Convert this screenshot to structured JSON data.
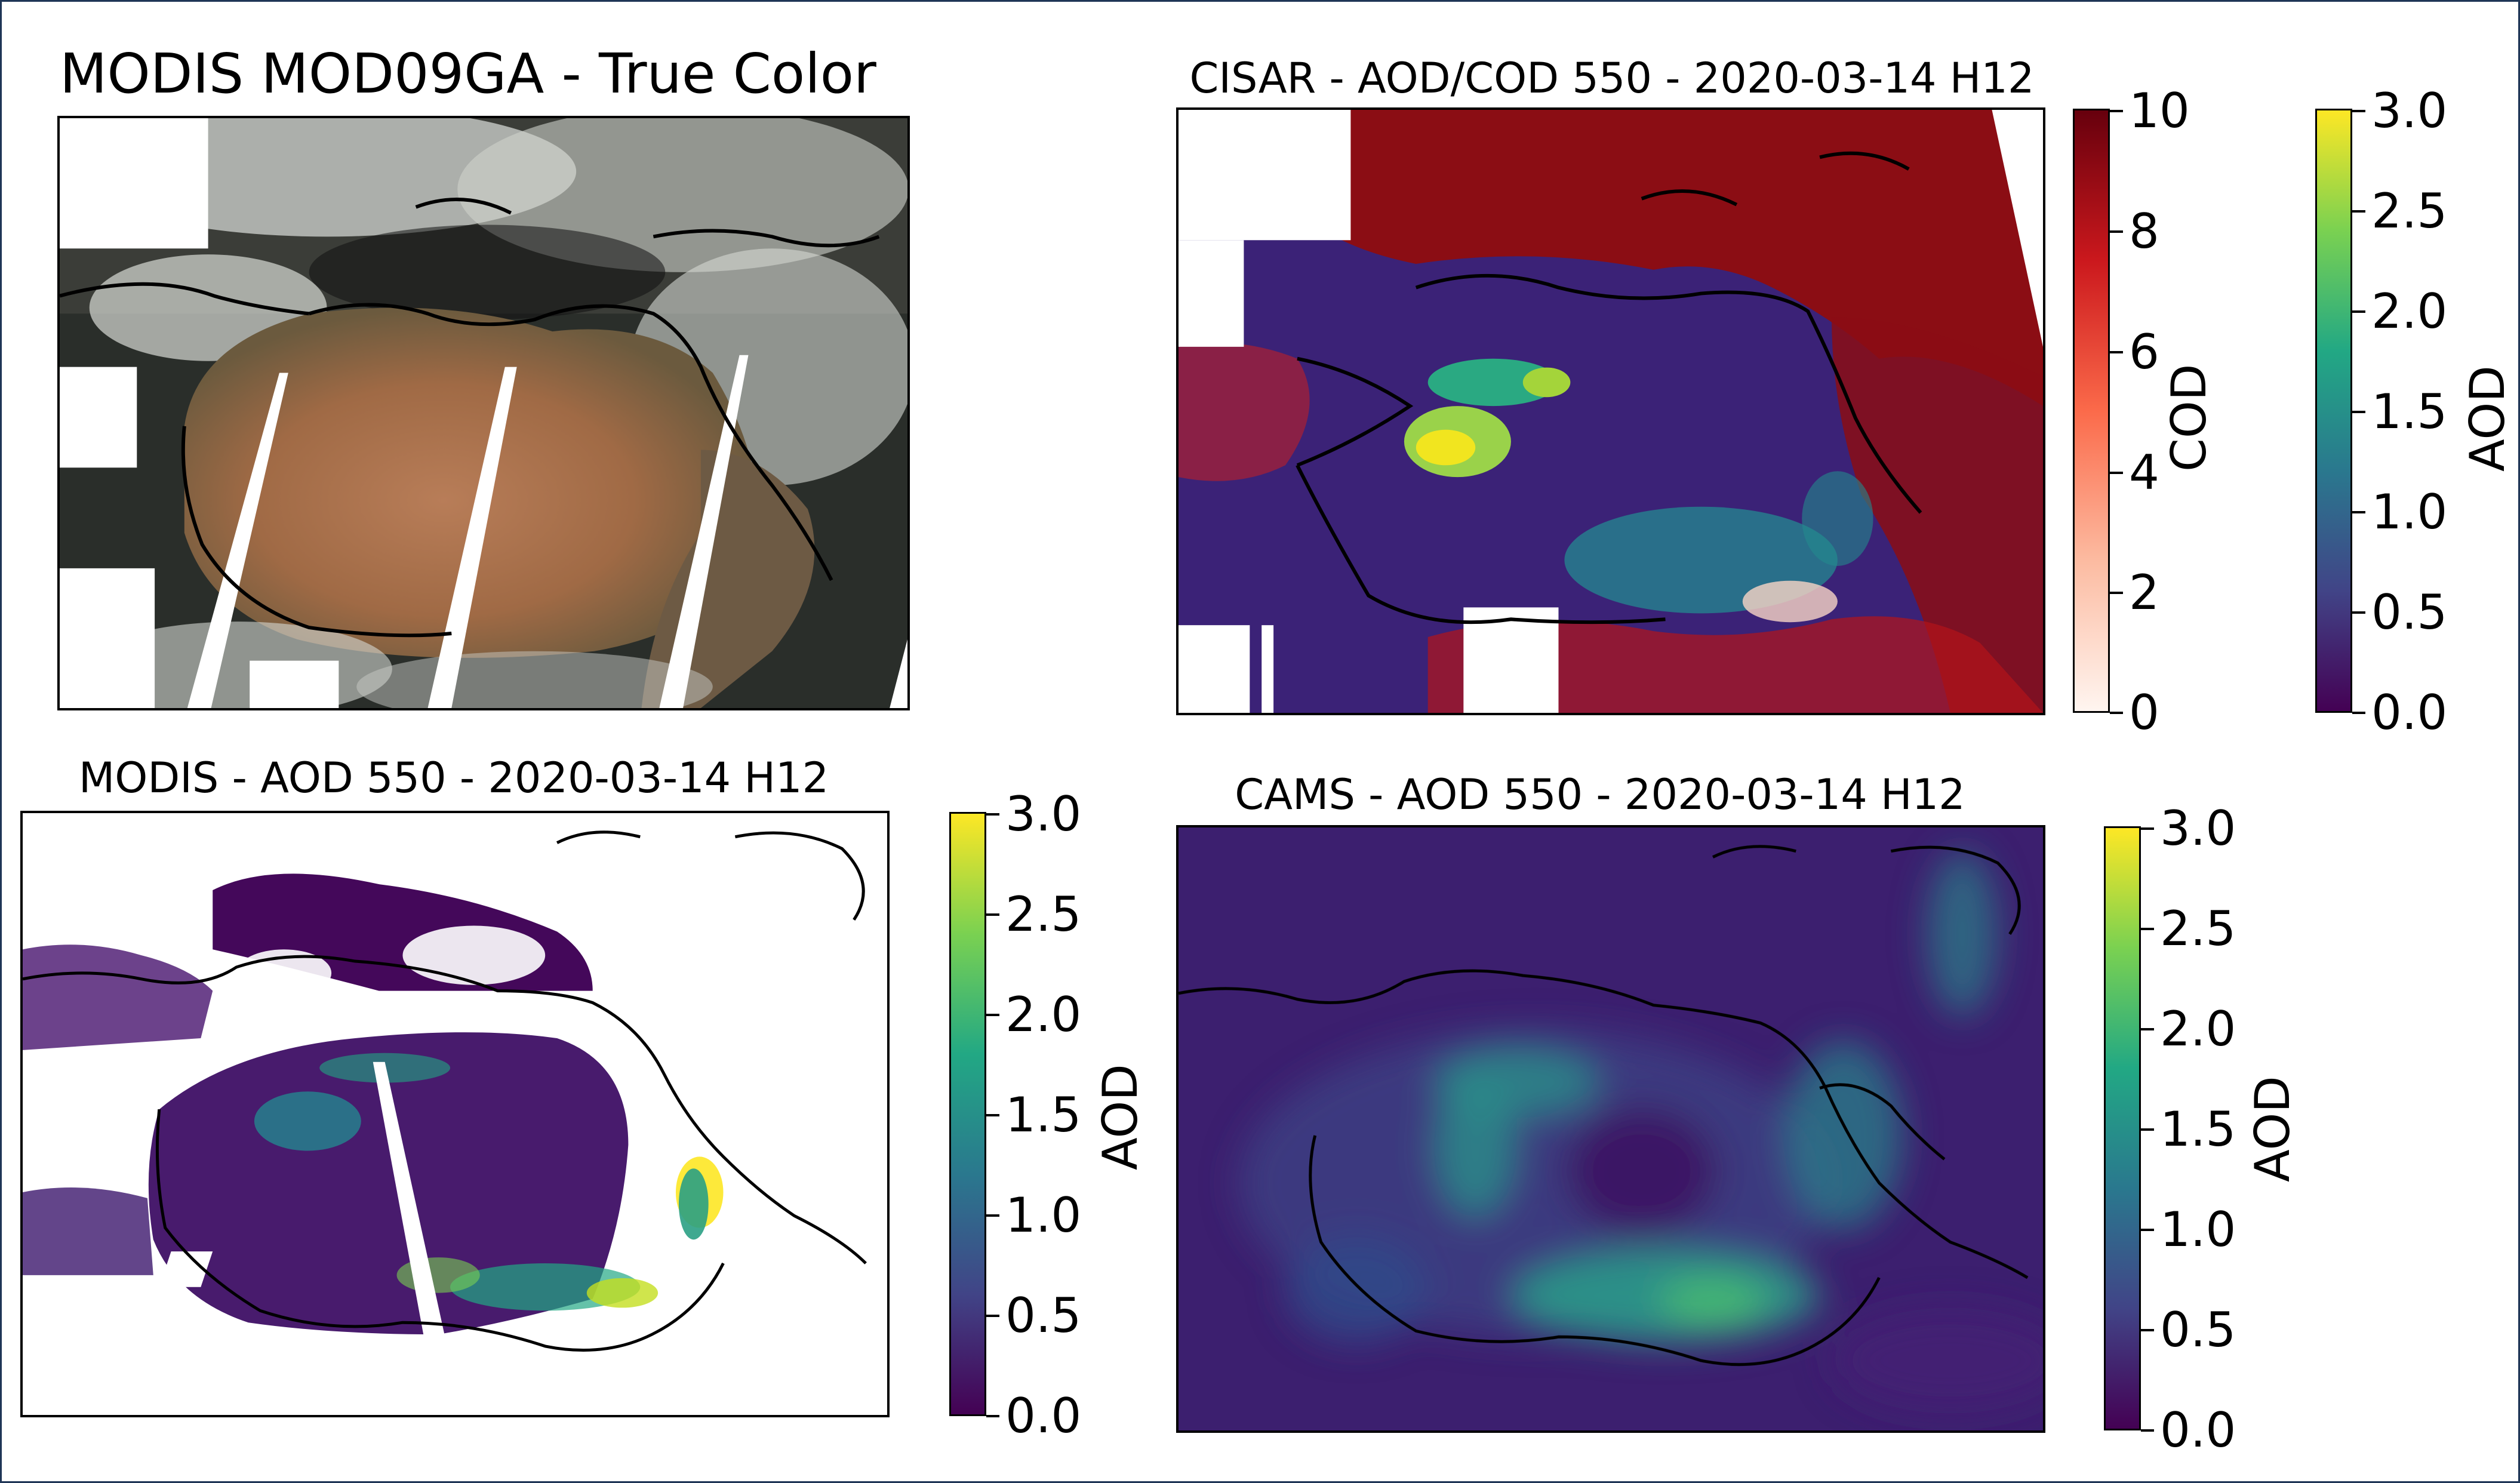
{
  "panels": {
    "truecolor": {
      "title": "MODIS MOD09GA - True Color"
    },
    "cisar": {
      "title": "CISAR - AOD/COD 550 - 2020-03-14 H12"
    },
    "modis": {
      "title": "MODIS - AOD 550 - 2020-03-14 H12"
    },
    "cams": {
      "title": "CAMS - AOD 550 - 2020-03-14 H12"
    }
  },
  "colorbars": {
    "cod": {
      "label": "COD",
      "ticks": [
        "0",
        "2",
        "4",
        "6",
        "8",
        "10"
      ],
      "range": [
        0,
        10
      ],
      "colormap": "Reds",
      "colors": [
        "#fff5f0",
        "#fcbba1",
        "#fb6a4a",
        "#cb181d",
        "#67000d"
      ]
    },
    "aod": {
      "label": "AOD",
      "ticks": [
        "0.0",
        "0.5",
        "1.0",
        "1.5",
        "2.0",
        "2.5",
        "3.0"
      ],
      "range": [
        0,
        3
      ],
      "colormap": "viridis",
      "colors": [
        "#440154",
        "#414487",
        "#2a788e",
        "#22a884",
        "#7ad151",
        "#fde725"
      ]
    }
  },
  "chart_data": [
    {
      "type": "heatmap",
      "title": "MODIS MOD09GA - True Color",
      "variable": "true color reflectance"
    },
    {
      "type": "heatmap",
      "title": "CISAR - AOD/COD 550 - 2020-03-14 H12",
      "variables": [
        "AOD",
        "COD"
      ],
      "colorbars": [
        {
          "label": "COD",
          "range": [
            0,
            10
          ],
          "ticks": [
            0,
            2,
            4,
            6,
            8,
            10
          ]
        },
        {
          "label": "AOD",
          "range": [
            0,
            3
          ],
          "ticks": [
            0.0,
            0.5,
            1.0,
            1.5,
            2.0,
            2.5,
            3.0
          ]
        }
      ]
    },
    {
      "type": "heatmap",
      "title": "MODIS - AOD 550 - 2020-03-14 H12",
      "variable": "AOD",
      "colorbar": {
        "label": "AOD",
        "range": [
          0,
          3
        ],
        "ticks": [
          0.0,
          0.5,
          1.0,
          1.5,
          2.0,
          2.5,
          3.0
        ]
      }
    },
    {
      "type": "heatmap",
      "title": "CAMS - AOD 550 - 2020-03-14 H12",
      "variable": "AOD",
      "colorbar": {
        "label": "AOD",
        "range": [
          0,
          3
        ],
        "ticks": [
          0.0,
          0.5,
          1.0,
          1.5,
          2.0,
          2.5,
          3.0
        ]
      }
    }
  ]
}
